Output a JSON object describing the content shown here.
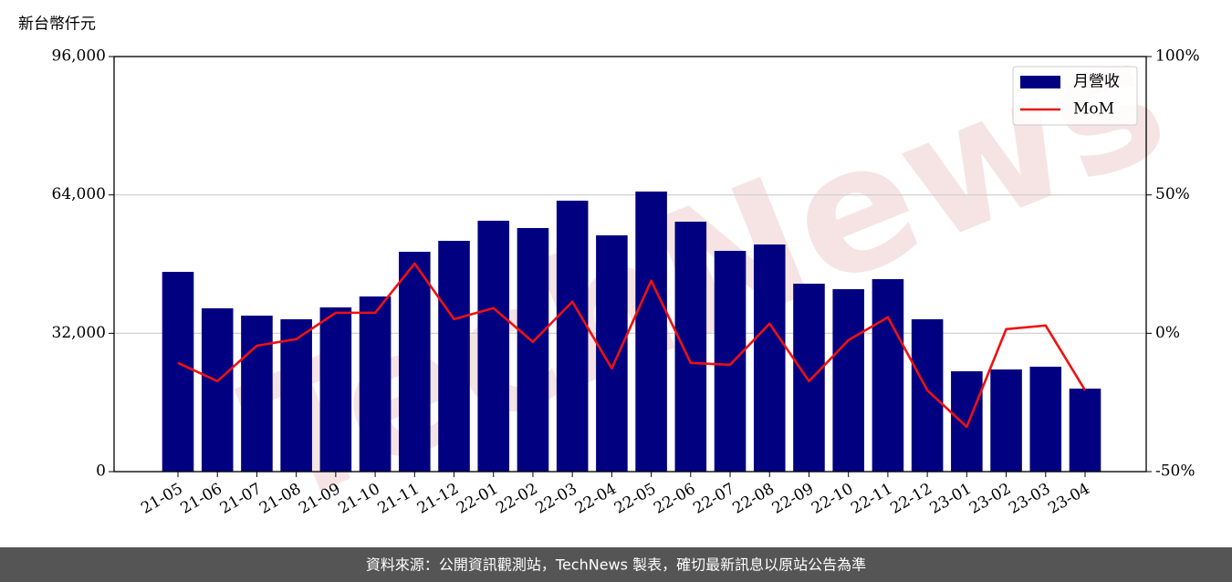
{
  "chart_data": {
    "type": "bar_line",
    "y_label": "新台幣仟元",
    "watermark": "TechNews",
    "categories": [
      "21-05",
      "21-06",
      "21-07",
      "21-08",
      "21-09",
      "21-10",
      "21-11",
      "21-12",
      "22-01",
      "22-02",
      "22-03",
      "22-04",
      "22-05",
      "22-06",
      "22-07",
      "22-08",
      "22-09",
      "22-10",
      "22-11",
      "22-12",
      "23-01",
      "23-02",
      "23-03",
      "23-04"
    ],
    "series": [
      {
        "name": "月營收",
        "type": "bar",
        "color": "#000080",
        "values": [
          46200,
          37770,
          36080,
          35240,
          37980,
          40510,
          50850,
          53380,
          58030,
          56340,
          62670,
          54650,
          64780,
          57810,
          51060,
          52540,
          43470,
          42200,
          44520,
          35240,
          23210,
          23630,
          24270,
          19200
        ]
      },
      {
        "name": "MoM",
        "type": "line",
        "axis": "y2",
        "color": "#ee1111",
        "values": [
          -10.7,
          -17.3,
          -4.5,
          -2.1,
          7.4,
          7.4,
          25.2,
          5.1,
          9.1,
          -3.1,
          11.4,
          -12.7,
          19.0,
          -10.7,
          -11.4,
          3.5,
          -17.3,
          -2.5,
          5.8,
          -20.6,
          -33.8,
          1.5,
          2.8,
          -20.6
        ]
      }
    ],
    "ylim": [
      0,
      96000
    ],
    "yticks": [
      0,
      {
        "value": 32000,
        "label": "32,000"
      },
      {
        "value": 64000,
        "label": "64,000"
      },
      {
        "value": 96000,
        "label": "96,000"
      }
    ],
    "y2lim": [
      -50,
      100
    ],
    "y2ticks": [
      {
        "value": -50,
        "label": "-50%"
      },
      {
        "value": 0,
        "label": "0%"
      },
      {
        "value": 50,
        "label": "50%"
      },
      {
        "value": 100,
        "label": "100%"
      }
    ],
    "grid": true,
    "legend": "upper right"
  },
  "footer": "資料來源：公開資訊觀測站，TechNews 製表，確切最新訊息以原站公告為準"
}
